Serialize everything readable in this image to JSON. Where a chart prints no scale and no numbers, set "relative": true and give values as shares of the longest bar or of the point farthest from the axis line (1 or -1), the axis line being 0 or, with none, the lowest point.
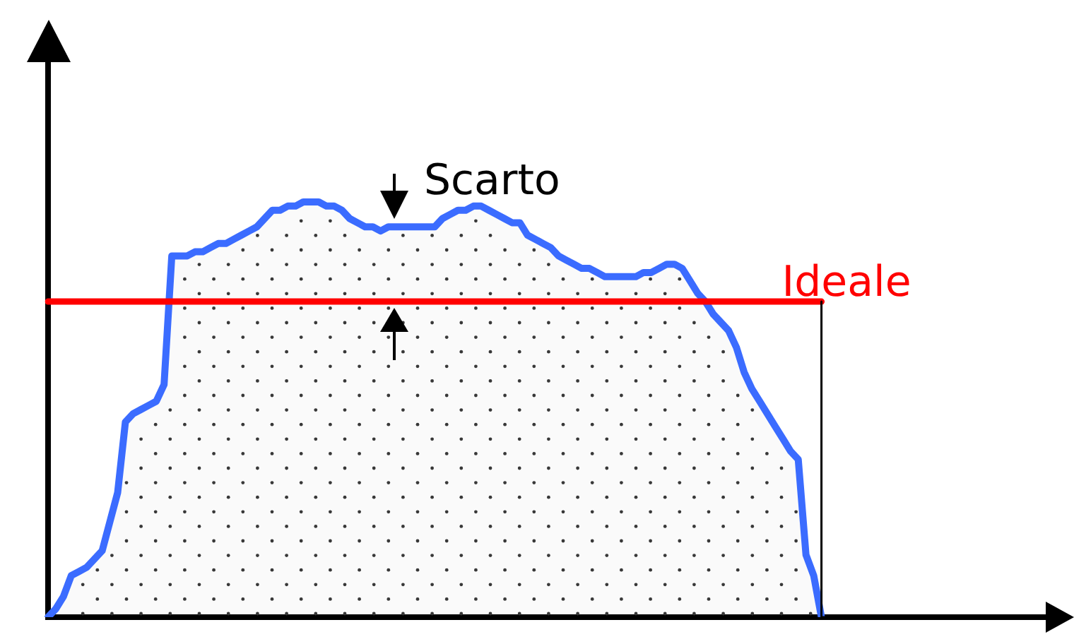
{
  "chart_data": {
    "type": "area",
    "relative": true,
    "marker": "none",
    "tick_labels": false,
    "annotations": [
      "Scarto"
    ],
    "categories": [
      null,
      null,
      null,
      null,
      null,
      null,
      null,
      null,
      null,
      null,
      null,
      null,
      null,
      null,
      null,
      null,
      null,
      null,
      null,
      null,
      null,
      null,
      null,
      null,
      null,
      null,
      null,
      null,
      null,
      null,
      null,
      null,
      null,
      null,
      null,
      null,
      null,
      null,
      null,
      null,
      null,
      null,
      null,
      null,
      null,
      null,
      null,
      null,
      null,
      null,
      null,
      null,
      null,
      null,
      null,
      null,
      null,
      null,
      null,
      null,
      null,
      null,
      null,
      null,
      null,
      null,
      null,
      null,
      null,
      null,
      null,
      null,
      null,
      null,
      null,
      null,
      null,
      null,
      null,
      null,
      null,
      null,
      null,
      null,
      null,
      null,
      null,
      null,
      null,
      null,
      null,
      null,
      null,
      null,
      null,
      null,
      null,
      null,
      null,
      null,
      null,
      null,
      null,
      null,
      null,
      null,
      null,
      null,
      null,
      null,
      null,
      null,
      null,
      null,
      null,
      null,
      null,
      null,
      null,
      null,
      null,
      null,
      null,
      null,
      null,
      null,
      null,
      null,
      null,
      null
    ],
    "series": [
      {
        "color": "#3b6cff",
        "values": [
          0,
          0.02,
          0.05,
          0.1,
          0.11,
          0.12,
          0.14,
          0.16,
          0.23,
          0.3,
          0.47,
          0.49,
          0.5,
          0.51,
          0.52,
          0.56,
          0.87,
          0.87,
          0.87,
          0.88,
          0.88,
          0.89,
          0.9,
          0.9,
          0.91,
          0.92,
          0.93,
          0.94,
          0.96,
          0.98,
          0.98,
          0.99,
          0.99,
          1,
          1,
          1,
          0.99,
          0.99,
          0.98,
          0.96,
          0.95,
          0.94,
          0.94,
          0.93,
          0.94,
          0.94,
          0.94,
          0.94,
          0.94,
          0.94,
          0.94,
          0.96,
          0.97,
          0.98,
          0.98,
          0.99,
          0.99,
          0.98,
          0.97,
          0.96,
          0.95,
          0.95,
          0.92,
          0.91,
          0.9,
          0.89,
          0.87,
          0.86,
          0.85,
          0.84,
          0.84,
          0.83,
          0.82,
          0.82,
          0.82,
          0.82,
          0.82,
          0.83,
          0.83,
          0.84,
          0.85,
          0.85,
          0.84,
          0.81,
          0.78,
          0.76,
          0.73,
          0.71,
          0.69,
          0.65,
          0.59,
          0.55,
          0.52,
          0.49,
          0.46,
          0.43,
          0.4,
          0.38,
          0.15,
          0.1,
          0,
          null,
          null,
          null,
          null,
          null,
          null,
          null,
          null,
          null,
          null,
          null,
          null,
          null,
          null,
          null,
          null,
          null,
          null,
          null,
          null,
          null,
          null,
          null,
          null,
          null,
          null,
          null,
          null,
          null
        ]
      },
      {
        "name": "Ideale",
        "type": "line",
        "color": "#ff0000",
        "values": [
          0.76,
          0.76,
          0.76,
          0.76,
          0.76,
          0.76,
          0.76,
          0.76,
          0.76,
          0.76,
          0.76,
          0.76,
          0.76,
          0.76,
          0.76,
          0.76,
          0.76,
          0.76,
          0.76,
          0.76,
          0.76,
          0.76,
          0.76,
          0.76,
          0.76,
          0.76,
          0.76,
          0.76,
          0.76,
          0.76,
          0.76,
          0.76,
          0.76,
          0.76,
          0.76,
          0.76,
          0.76,
          0.76,
          0.76,
          0.76,
          0.76,
          0.76,
          0.76,
          0.76,
          0.76,
          0.76,
          0.76,
          0.76,
          0.76,
          0.76,
          0.76,
          0.76,
          0.76,
          0.76,
          0.76,
          0.76,
          0.76,
          0.76,
          0.76,
          0.76,
          0.76,
          0.76,
          0.76,
          0.76,
          0.76,
          0.76,
          0.76,
          0.76,
          0.76,
          0.76,
          0.76,
          0.76,
          0.76,
          0.76,
          0.76,
          0.76,
          0.76,
          0.76,
          0.76,
          0.76,
          0.76,
          0.76,
          0.76,
          0.76,
          0.76,
          0.76,
          0.76,
          0.76,
          0.76,
          0.76,
          0.76,
          0.76,
          0.76,
          0.76,
          0.76,
          0.76,
          0.76,
          0.76,
          0.76,
          0.76,
          0.76,
          null,
          null,
          null,
          null,
          null,
          null,
          null,
          null,
          null,
          null,
          null,
          null,
          null,
          null,
          null,
          null,
          null,
          null,
          null,
          null,
          null,
          null,
          null,
          null,
          null,
          null,
          null,
          null,
          null
        ]
      },
      {
        "type": "step",
        "color": "#000000",
        "values": [
          null,
          null,
          null,
          null,
          null,
          null,
          null,
          null,
          null,
          null,
          null,
          null,
          null,
          null,
          null,
          null,
          null,
          null,
          null,
          null,
          null,
          null,
          null,
          null,
          null,
          null,
          null,
          null,
          null,
          null,
          null,
          null,
          null,
          null,
          null,
          null,
          null,
          null,
          null,
          null,
          null,
          null,
          null,
          null,
          null,
          null,
          null,
          null,
          null,
          null,
          null,
          null,
          null,
          null,
          null,
          null,
          null,
          null,
          null,
          null,
          null,
          null,
          null,
          null,
          null,
          null,
          null,
          null,
          null,
          null,
          null,
          null,
          null,
          null,
          null,
          null,
          null,
          null,
          null,
          null,
          null,
          null,
          null,
          null,
          null,
          null,
          null,
          null,
          null,
          null,
          null,
          null,
          null,
          null,
          null,
          null,
          null,
          null,
          null,
          null,
          0.76,
          0,
          null,
          null,
          null,
          null,
          null,
          null,
          null,
          null,
          null,
          null,
          null,
          null,
          null,
          null,
          null,
          null,
          null,
          null,
          null,
          null,
          null,
          null,
          null,
          null,
          null,
          null,
          null,
          null
        ]
      }
    ]
  }
}
